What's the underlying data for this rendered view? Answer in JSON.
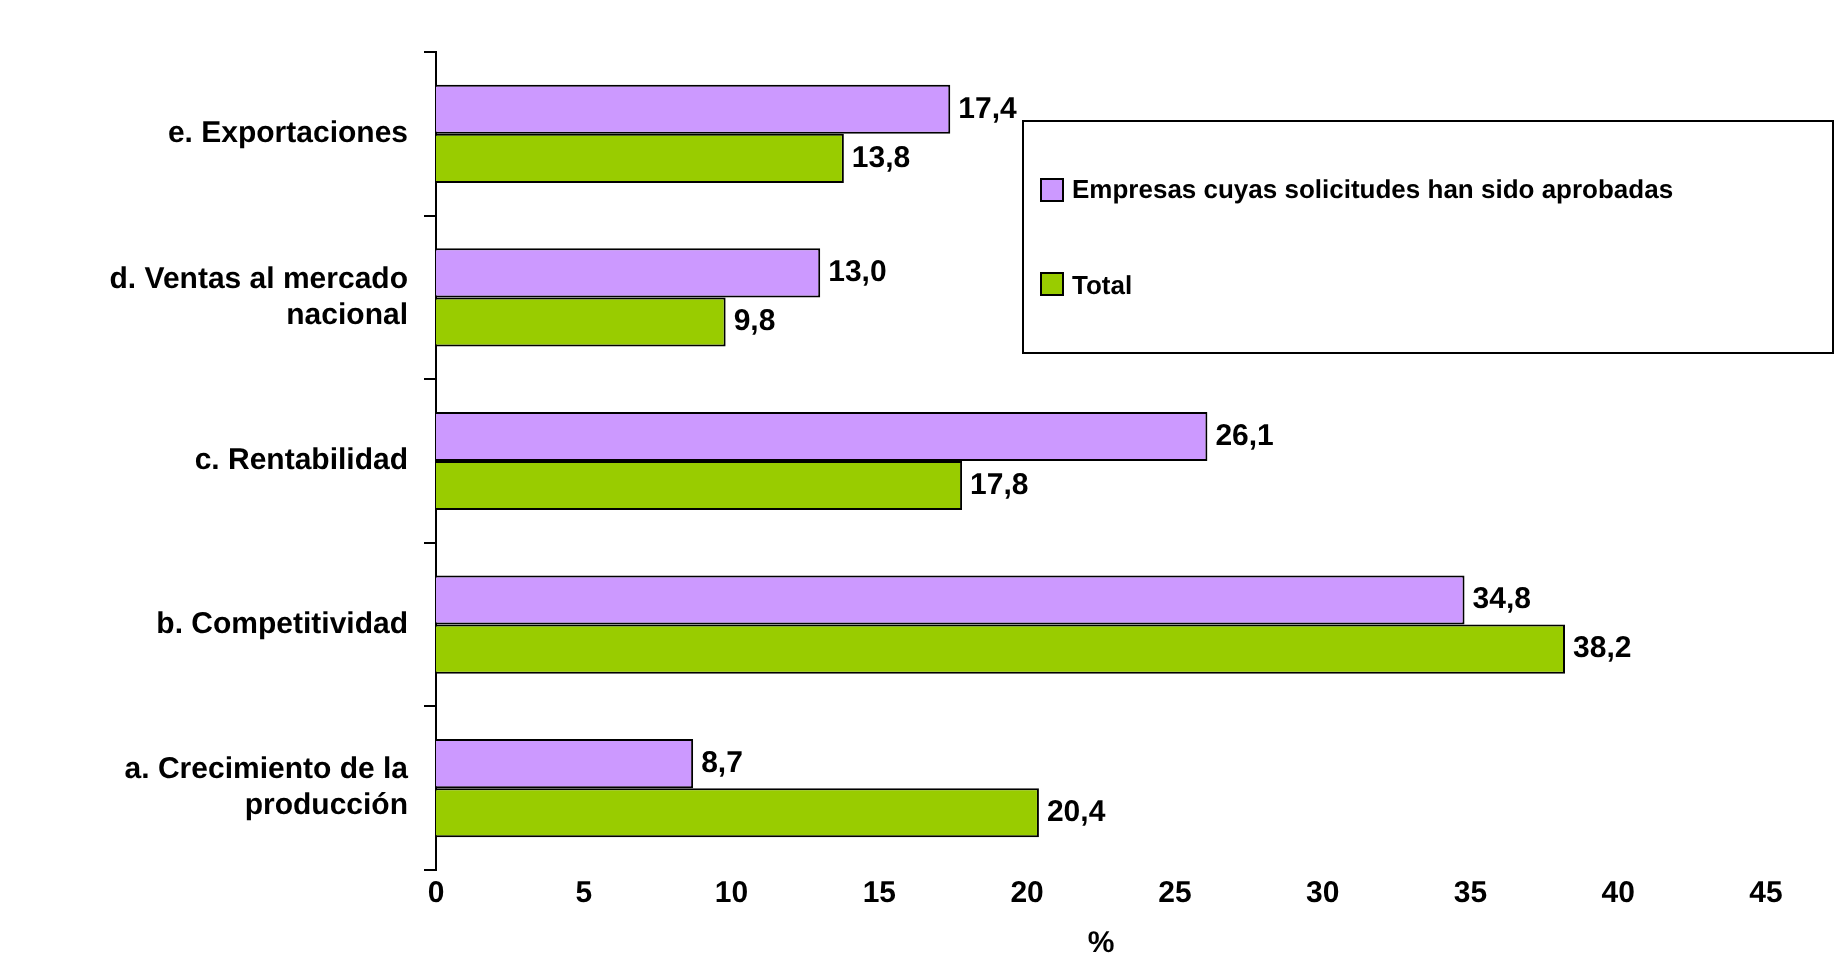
{
  "chart_data": {
    "type": "bar",
    "orientation": "horizontal",
    "xlabel": "%",
    "categories": [
      "e. Exportaciones",
      "d. Ventas al mercado nacional",
      "c. Rentabilidad",
      "b. Competitividad",
      "a. Crecimiento de la producción"
    ],
    "series": [
      {
        "name": "Empresas cuyas solicitudes han sido aprobadas",
        "color": "#cc99ff",
        "values": [
          17.4,
          13.0,
          26.1,
          34.8,
          8.7
        ],
        "value_labels": [
          "17,4",
          "13,0",
          "26,1",
          "34,8",
          "8,7"
        ]
      },
      {
        "name": "Total",
        "color": "#99cc00",
        "values": [
          13.8,
          9.8,
          17.8,
          38.2,
          20.4
        ],
        "value_labels": [
          "13,8",
          "9,8",
          "17,8",
          "38,2",
          "20,4"
        ]
      }
    ],
    "xlim": [
      0,
      45
    ],
    "xticks": [
      0,
      5,
      10,
      15,
      20,
      25,
      30,
      35,
      40,
      45
    ],
    "grid": false,
    "legend": "top right"
  }
}
